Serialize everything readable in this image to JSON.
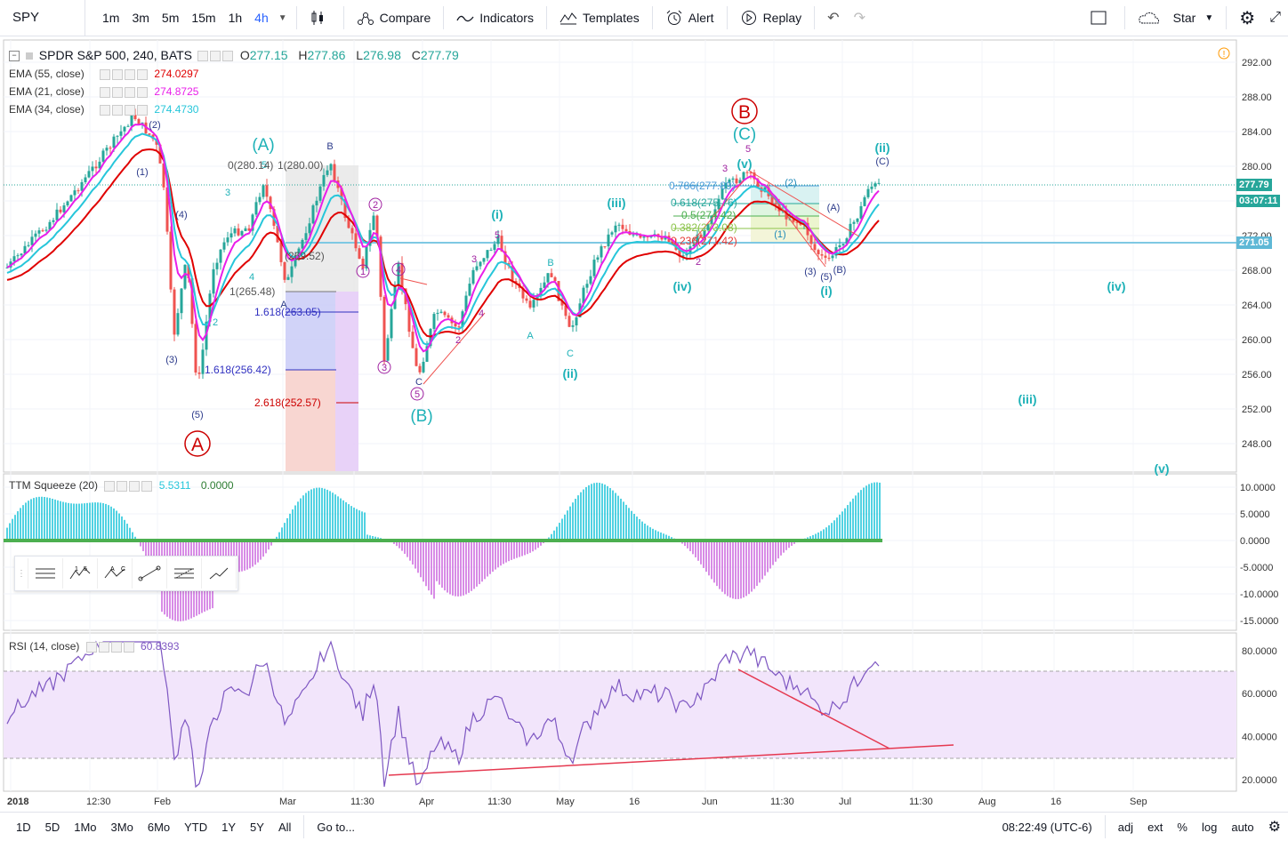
{
  "symbol": "SPY",
  "toolbar": {
    "timeframes": [
      "1m",
      "3m",
      "5m",
      "15m",
      "1h",
      "4h"
    ],
    "active_tf": "4h",
    "compare": "Compare",
    "indicators": "Indicators",
    "templates": "Templates",
    "alert": "Alert",
    "replay": "Replay",
    "star": "Star"
  },
  "main_legend": {
    "title": "SPDR S&P 500, 240, BATS",
    "o_label": "O",
    "o": "277.15",
    "h_label": "H",
    "h": "277.86",
    "l_label": "L",
    "l": "276.98",
    "c_label": "C",
    "c": "277.79"
  },
  "ema": [
    {
      "label": "EMA (55, close)",
      "value": "274.0297",
      "color": "#e00000"
    },
    {
      "label": "EMA (21, close)",
      "value": "274.8725",
      "color": "#e91ee9"
    },
    {
      "label": "EMA (34, close)",
      "value": "274.4730",
      "color": "#26c6da"
    }
  ],
  "price_axis": [
    "292.00",
    "288.00",
    "284.00",
    "280.00",
    "276.00",
    "272.00",
    "268.00",
    "264.00",
    "260.00",
    "256.00",
    "252.00",
    "248.00"
  ],
  "price_tags": {
    "last": "277.79",
    "countdown": "03:07:11",
    "line": "271.05"
  },
  "ttm": {
    "label": "TTM Squeeze (20)",
    "v1": "5.5311",
    "v2": "0.0000",
    "axis": [
      "10.0000",
      "5.0000",
      "0.0000",
      "-5.0000",
      "-10.0000",
      "-15.0000"
    ]
  },
  "rsi": {
    "label": "RSI (14, close)",
    "value": "60.8393",
    "axis": [
      "80.0000",
      "60.0000",
      "40.0000",
      "20.0000"
    ]
  },
  "time_axis": [
    "2018",
    "12:30",
    "Feb",
    "Mar",
    "11:30",
    "Apr",
    "11:30",
    "May",
    "16",
    "Jun",
    "11:30",
    "Jul",
    "11:30",
    "Aug",
    "16",
    "Sep"
  ],
  "fib_labels": {
    "f0": "0(280.14)",
    "f1": "1(280.00)",
    "f2": "(269.52)",
    "f3": "1(265.48)",
    "f4": "1.618(263.05)",
    "f5": "1.618(256.42)",
    "f6": "2.618(252.57)",
    "g1": "0.786(277.89)",
    "g2": "0.618(275.76)",
    "g3": "0.5(274.42)",
    "g4": "0.382(273.08)",
    "g5": "0.236(271.42)"
  },
  "waves": {
    "A_big": "A",
    "B_big": "B",
    "A_paren": "(A)",
    "B_paren": "(B)",
    "C_paren": "(C)",
    "i1": "(i)",
    "ii1": "(ii)",
    "iii1": "(iii)",
    "iv1": "(iv)",
    "v1": "(v)",
    "i2": "(i)",
    "ii2": "(ii)",
    "iii2": "(iii)",
    "iv2": "(iv)",
    "v2": "(v)",
    "p1": "(1)",
    "p2": "(2)",
    "p3": "(3)",
    "p4": "(4)",
    "p5": "(5)",
    "n2": "2",
    "n3": "3",
    "n4": "4",
    "n5": "5",
    "nB": "B",
    "nA": "A",
    "nC": "C",
    "c1": "1",
    "c2": "2",
    "c3": "3",
    "c4": "4",
    "c5": "5",
    "q1": "(1)",
    "q2": "(2)",
    "q3": "(3)",
    "q5": "(5)",
    "qA": "(A)",
    "qB": "(B)",
    "qC": "(C)"
  },
  "bottom": {
    "ranges": [
      "1D",
      "5D",
      "1Mo",
      "3Mo",
      "6Mo",
      "YTD",
      "1Y",
      "5Y",
      "All"
    ],
    "goto": "Go to...",
    "time": "08:22:49 (UTC-6)",
    "adj": "adj",
    "ext": "ext",
    "pct": "%",
    "log": "log",
    "auto": "auto"
  },
  "colors": {
    "up": "#26a69a",
    "down": "#ef5350",
    "ema55": "#e00000",
    "ema21": "#e91ee9",
    "ema34": "#26c6da",
    "wave": "#1fb2b8"
  }
}
